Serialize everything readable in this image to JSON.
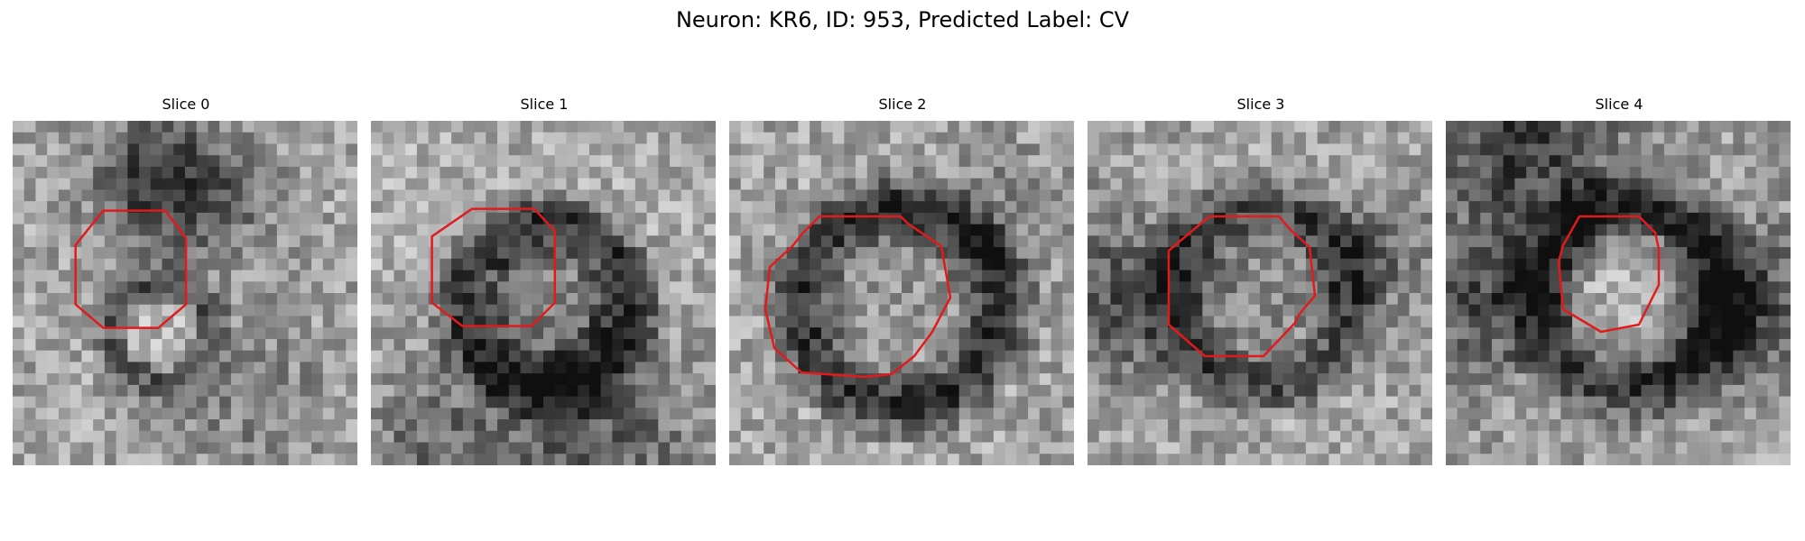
{
  "figure": {
    "title": "Neuron: KR6, ID: 953, Predicted Label: CV"
  },
  "panels": [
    {
      "title": "Slice 0",
      "contour_color": "#e31a1c"
    },
    {
      "title": "Slice 1",
      "contour_color": "#e31a1c"
    },
    {
      "title": "Slice 2",
      "contour_color": "#e31a1c"
    },
    {
      "title": "Slice 3",
      "contour_color": "#e31a1c"
    },
    {
      "title": "Slice 4",
      "contour_color": "#e31a1c"
    }
  ]
}
